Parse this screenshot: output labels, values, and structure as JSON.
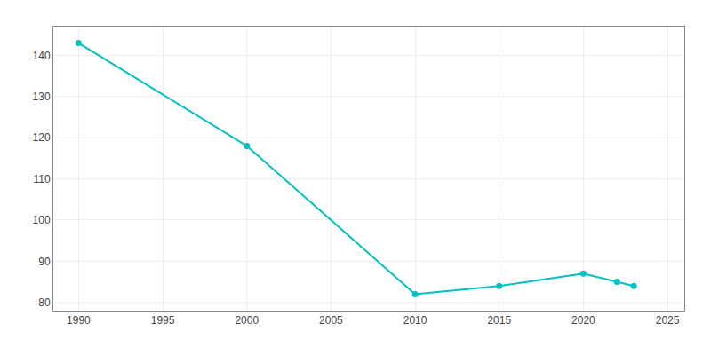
{
  "chart_data": {
    "type": "line",
    "x": [
      1990,
      2000,
      2010,
      2015,
      2020,
      2022,
      2023
    ],
    "values": [
      143,
      118,
      82,
      84,
      87,
      85,
      84
    ],
    "color": "#00C0C0",
    "marker": "circle",
    "xlim": [
      1988.5,
      2026
    ],
    "ylim": [
      78,
      147
    ],
    "xticks": [
      1990,
      1995,
      2000,
      2005,
      2010,
      2015,
      2020,
      2025
    ],
    "yticks": [
      80,
      90,
      100,
      110,
      120,
      130,
      140
    ],
    "grid": true
  }
}
